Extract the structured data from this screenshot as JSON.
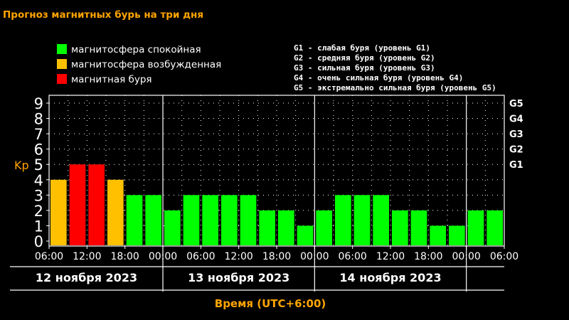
{
  "title": "Прогноз магнитных бурь на три дня",
  "legend": [
    {
      "label": "магнитосфера спокойная",
      "color": "#00ff00"
    },
    {
      "label": "магнитосфера возбужденная",
      "color": "#ffc000"
    },
    {
      "label": "магнитная буря",
      "color": "#ff0000"
    }
  ],
  "g_levels": [
    "G1 - слабая буря (уровень G1)",
    "G2 - средняя буря (уровень G2)",
    "G3 - сильная буря (уровень G3)",
    "G4 - очень сильная буря (уровень G4)",
    "G5 - экстремально сильная буря (уровень G5)"
  ],
  "colors": {
    "title": "#ffa500",
    "axis_label": "#ffa500",
    "quiet": "#00ff00",
    "active": "#ffc000",
    "storm": "#ff0000",
    "axis": "#ffffff",
    "grid": "#ffffff"
  },
  "chart_data": {
    "type": "bar",
    "ylabel": "Kp",
    "xlabel": "Время (UTC+6:00)",
    "ylim": [
      0,
      9
    ],
    "y_ticks": [
      "0",
      "1",
      "2",
      "3",
      "4",
      "5",
      "6",
      "7",
      "8",
      "9"
    ],
    "right_ticks": [
      {
        "label": "G1",
        "kp": 5
      },
      {
        "label": "G2",
        "kp": 6
      },
      {
        "label": "G3",
        "kp": 7
      },
      {
        "label": "G4",
        "kp": 8
      },
      {
        "label": "G5",
        "kp": 9
      }
    ],
    "x_ticks": [
      "06:00",
      "12:00",
      "18:00",
      "00:00",
      "06:00",
      "12:00",
      "18:00",
      "00:00",
      "06:00",
      "12:00",
      "18:00",
      "00:00",
      "06:00"
    ],
    "x_tick_positions": [
      0,
      2,
      4,
      6,
      8,
      10,
      12,
      14,
      16,
      18,
      20,
      22,
      24
    ],
    "day_separators": [
      6,
      14,
      22
    ],
    "day_labels": [
      {
        "label": "12 ноября 2023",
        "start": 0,
        "end": 6
      },
      {
        "label": "13 ноября 2023",
        "start": 6,
        "end": 14
      },
      {
        "label": "14 ноября 2023",
        "start": 14,
        "end": 22
      }
    ],
    "grid": true,
    "values": [
      4,
      5,
      5,
      4,
      3,
      3,
      2,
      3,
      3,
      3,
      3,
      2,
      2,
      1,
      2,
      3,
      3,
      3,
      2,
      2,
      1,
      1,
      2,
      2
    ],
    "levels": [
      "active",
      "storm",
      "storm",
      "active",
      "quiet",
      "quiet",
      "quiet",
      "quiet",
      "quiet",
      "quiet",
      "quiet",
      "quiet",
      "quiet",
      "quiet",
      "quiet",
      "quiet",
      "quiet",
      "quiet",
      "quiet",
      "quiet",
      "quiet",
      "quiet",
      "quiet",
      "quiet"
    ]
  }
}
